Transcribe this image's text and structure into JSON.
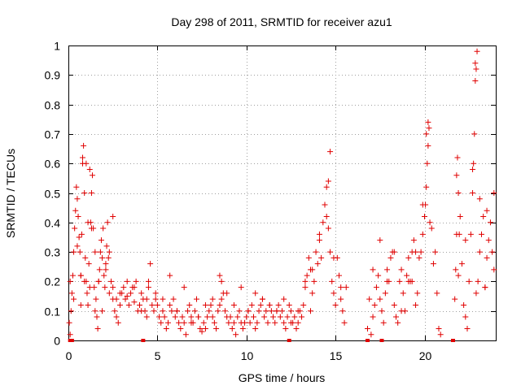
{
  "chart_data": {
    "type": "scatter",
    "title": "Day 298 of 2011, SRMTID for receiver azu1",
    "xlabel": "GPS time / hours",
    "ylabel": "SRMTID / TECUs",
    "xlim": [
      0,
      24
    ],
    "ylim": [
      0,
      1
    ],
    "xticks": [
      0,
      5,
      10,
      15,
      20
    ],
    "yticks": [
      0,
      0.1,
      0.2,
      0.3,
      0.4,
      0.5,
      0.6,
      0.7,
      0.8,
      0.9,
      1
    ],
    "xtick_labels": [
      "0",
      "5",
      "10",
      "15",
      "20"
    ],
    "ytick_labels": [
      "0",
      "0.1",
      "0.2",
      "0.3",
      "0.4",
      "0.5",
      "0.6",
      "0.7",
      "0.8",
      "0.9",
      "1"
    ],
    "grid": true,
    "marker": "+",
    "color": "#e00000",
    "series": [
      {
        "name": "SRMTID",
        "x": [
          0.05,
          0.1,
          0.15,
          0.2,
          0.25,
          0.3,
          0.35,
          0.4,
          0.45,
          0.5,
          0.55,
          0.6,
          0.65,
          0.7,
          0.75,
          0.8,
          0.85,
          0.9,
          0.95,
          1.0,
          1.05,
          1.1,
          1.15,
          1.2,
          1.25,
          1.3,
          1.35,
          1.4,
          1.45,
          1.5,
          1.55,
          1.6,
          1.65,
          1.7,
          1.75,
          1.8,
          1.85,
          1.9,
          1.95,
          2.0,
          2.05,
          2.1,
          2.15,
          2.2,
          2.25,
          2.3,
          2.4,
          2.5,
          2.6,
          2.7,
          2.8,
          2.9,
          3.0,
          3.1,
          3.2,
          3.3,
          3.4,
          3.5,
          3.6,
          3.7,
          3.8,
          3.9,
          4.0,
          4.1,
          4.2,
          4.3,
          4.4,
          4.5,
          4.6,
          4.7,
          4.8,
          4.9,
          5.0,
          5.1,
          5.2,
          5.3,
          5.4,
          5.5,
          5.6,
          5.7,
          5.8,
          5.9,
          6.0,
          6.1,
          6.2,
          6.3,
          6.4,
          6.5,
          6.6,
          6.7,
          6.8,
          6.9,
          7.0,
          7.1,
          7.2,
          7.3,
          7.4,
          7.5,
          7.6,
          7.7,
          7.8,
          7.9,
          8.0,
          8.1,
          8.2,
          8.3,
          8.4,
          8.5,
          8.6,
          8.7,
          8.8,
          8.9,
          9.0,
          9.1,
          9.2,
          9.3,
          9.4,
          9.5,
          9.6,
          9.7,
          9.8,
          9.9,
          10.0,
          10.1,
          10.2,
          10.3,
          10.4,
          10.5,
          10.6,
          10.7,
          10.8,
          10.9,
          11.0,
          11.1,
          11.2,
          11.3,
          11.4,
          11.5,
          11.6,
          11.7,
          11.8,
          11.9,
          12.0,
          12.1,
          12.2,
          12.3,
          12.4,
          12.5,
          12.6,
          12.7,
          12.8,
          12.9,
          13.0,
          13.1,
          13.2,
          13.3,
          13.4,
          13.5,
          13.6,
          13.7,
          13.8,
          13.9,
          14.0,
          14.1,
          14.2,
          14.3,
          14.4,
          14.5,
          14.6,
          14.7,
          14.8,
          14.9,
          15.0,
          15.1,
          15.2,
          15.3,
          15.4,
          15.5,
          15.6,
          16.8,
          16.9,
          17.0,
          17.1,
          17.2,
          17.3,
          17.4,
          17.5,
          17.6,
          17.7,
          17.8,
          17.9,
          18.0,
          18.1,
          18.2,
          18.3,
          18.4,
          18.5,
          18.6,
          18.7,
          18.8,
          18.9,
          19.0,
          19.1,
          19.2,
          19.3,
          19.4,
          19.5,
          19.6,
          19.7,
          19.8,
          19.9,
          20.0,
          20.05,
          20.1,
          20.15,
          20.2,
          20.25,
          20.3,
          20.4,
          20.5,
          20.6,
          20.7,
          20.8,
          20.9,
          21.7,
          21.75,
          21.8,
          21.85,
          21.9,
          21.95,
          22.0,
          22.1,
          22.2,
          22.3,
          22.4,
          22.5,
          22.6,
          22.7,
          22.75,
          22.8,
          22.85,
          22.9,
          23.0,
          23.1,
          23.2,
          23.3,
          23.4,
          23.5,
          23.6,
          23.7,
          23.8,
          23.9,
          0.1,
          0.3,
          0.5,
          0.7,
          0.9,
          1.1,
          1.3,
          1.5,
          1.7,
          1.9,
          2.1,
          2.3,
          2.5,
          2.7,
          2.9,
          3.3,
          3.7,
          4.1,
          4.5,
          4.9,
          5.3,
          5.7,
          6.1,
          6.5,
          6.9,
          7.3,
          7.7,
          8.1,
          8.5,
          8.9,
          9.3,
          9.7,
          10.1,
          10.5,
          10.9,
          11.3,
          11.7,
          12.1,
          12.5,
          12.9,
          13.3,
          13.7,
          14.1,
          14.5,
          14.9,
          15.3,
          17.1,
          17.5,
          17.9,
          18.3,
          18.7,
          19.1,
          19.5,
          19.9,
          21.9,
          22.3,
          22.7,
          23.1,
          23.5,
          23.9,
          0.8,
          1.0,
          1.2,
          14.6,
          14.7,
          20.1,
          20.2,
          22.85,
          22.9,
          22.95,
          0.7,
          2.5,
          4.4,
          8.6,
          13.6,
          19.3,
          21.8,
          23.4
        ],
        "values": [
          0.06,
          0.02,
          0.1,
          0.16,
          0.22,
          0.3,
          0.38,
          0.44,
          0.52,
          0.48,
          0.42,
          0.35,
          0.3,
          0.22,
          0.36,
          0.6,
          0.66,
          0.5,
          0.28,
          0.2,
          0.16,
          0.12,
          0.26,
          0.18,
          0.4,
          0.5,
          0.56,
          0.38,
          0.18,
          0.1,
          0.14,
          0.08,
          0.04,
          0.2,
          0.24,
          0.3,
          0.34,
          0.28,
          0.38,
          0.22,
          0.18,
          0.26,
          0.32,
          0.4,
          0.28,
          0.16,
          0.2,
          0.14,
          0.1,
          0.08,
          0.06,
          0.12,
          0.16,
          0.18,
          0.14,
          0.15,
          0.12,
          0.16,
          0.18,
          0.13,
          0.2,
          0.1,
          0.12,
          0.16,
          0.14,
          0.1,
          0.08,
          0.18,
          0.26,
          0.12,
          0.1,
          0.14,
          0.12,
          0.08,
          0.06,
          0.1,
          0.08,
          0.04,
          0.06,
          0.12,
          0.1,
          0.14,
          0.08,
          0.1,
          0.06,
          0.04,
          0.08,
          0.06,
          0.02,
          0.1,
          0.12,
          0.08,
          0.06,
          0.1,
          0.14,
          0.08,
          0.04,
          0.03,
          0.06,
          0.04,
          0.08,
          0.1,
          0.12,
          0.08,
          0.06,
          0.04,
          0.1,
          0.12,
          0.14,
          0.16,
          0.1,
          0.08,
          0.06,
          0.08,
          0.04,
          0.06,
          0.02,
          0.08,
          0.1,
          0.06,
          0.04,
          0.06,
          0.08,
          0.1,
          0.06,
          0.12,
          0.08,
          0.04,
          0.06,
          0.1,
          0.12,
          0.14,
          0.08,
          0.1,
          0.06,
          0.12,
          0.1,
          0.08,
          0.06,
          0.1,
          0.12,
          0.08,
          0.1,
          0.06,
          0.04,
          0.08,
          0.12,
          0.1,
          0.06,
          0.08,
          0.04,
          0.06,
          0.1,
          0.08,
          0.12,
          0.18,
          0.22,
          0.28,
          0.24,
          0.16,
          0.2,
          0.3,
          0.26,
          0.34,
          0.28,
          0.4,
          0.46,
          0.52,
          0.38,
          0.3,
          0.2,
          0.16,
          0.12,
          0.28,
          0.22,
          0.14,
          0.1,
          0.06,
          0.18,
          0.04,
          0.14,
          0.02,
          0.08,
          0.12,
          0.18,
          0.22,
          0.14,
          0.1,
          0.06,
          0.16,
          0.24,
          0.2,
          0.28,
          0.3,
          0.12,
          0.08,
          0.06,
          0.2,
          0.24,
          0.16,
          0.1,
          0.22,
          0.28,
          0.2,
          0.3,
          0.34,
          0.12,
          0.16,
          0.28,
          0.3,
          0.36,
          0.42,
          0.46,
          0.52,
          0.6,
          0.66,
          0.72,
          0.4,
          0.38,
          0.26,
          0.3,
          0.16,
          0.04,
          0.02,
          0.14,
          0.24,
          0.56,
          0.62,
          0.5,
          0.36,
          0.42,
          0.26,
          0.12,
          0.08,
          0.04,
          0.2,
          0.36,
          0.5,
          0.6,
          0.7,
          0.88,
          0.16,
          0.2,
          0.3,
          0.36,
          0.42,
          0.18,
          0.28,
          0.34,
          0.4,
          0.3,
          0.24,
          0.2,
          0.14,
          0.32,
          0.12,
          0.2,
          0.4,
          0.38,
          0.3,
          0.2,
          0.1,
          0.24,
          0.3,
          0.18,
          0.14,
          0.16,
          0.2,
          0.18,
          0.1,
          0.2,
          0.16,
          0.14,
          0.22,
          0.1,
          0.18,
          0.06,
          0.08,
          0.12,
          0.14,
          0.22,
          0.16,
          0.12,
          0.18,
          0.1,
          0.16,
          0.14,
          0.12,
          0.1,
          0.14,
          0.06,
          0.1,
          0.2,
          0.24,
          0.36,
          0.42,
          0.28,
          0.18,
          0.24,
          0.34,
          0.2,
          0.3,
          0.1,
          0.2,
          0.3,
          0.46,
          0.22,
          0.34,
          0.58,
          0.48,
          0.44,
          0.5,
          0.62,
          0.6,
          0.58,
          0.54,
          0.64,
          0.7,
          0.74,
          0.94,
          0.92,
          0.98,
          0.22,
          0.42,
          0.14,
          0.2,
          0.1,
          0.2,
          0.36,
          0.18
        ],
        "zero_x": [
          0.1,
          0.2,
          4.2,
          12.4,
          16.8,
          17.6,
          21.6
        ]
      }
    ]
  }
}
